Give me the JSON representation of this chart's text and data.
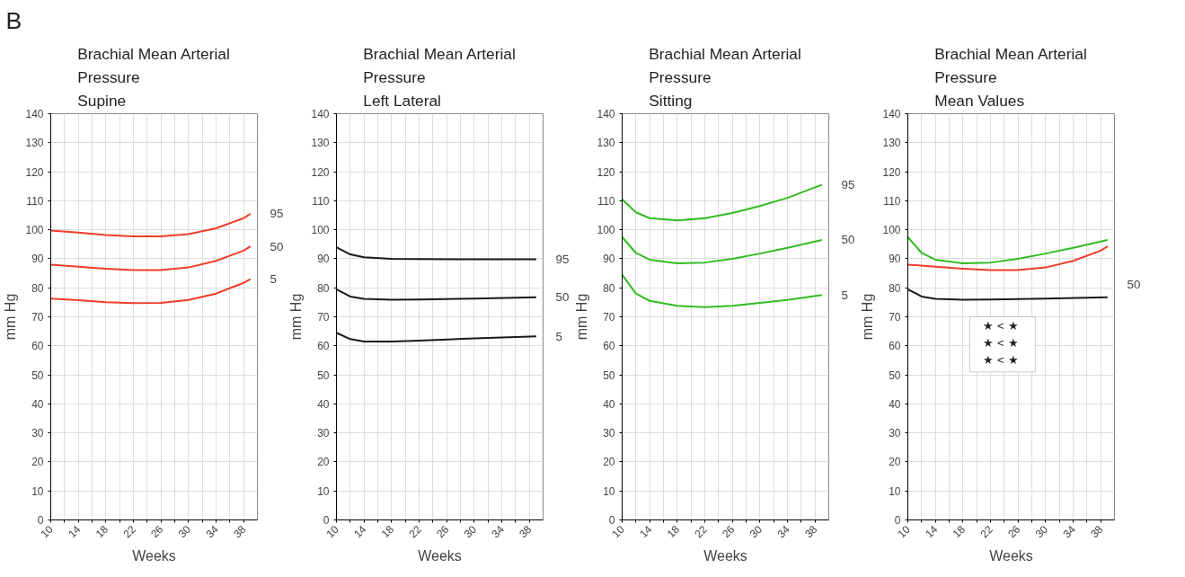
{
  "chart_data": [
    {
      "type": "line",
      "title": "Brachial Mean Arterial\nPressure\nSupine",
      "xlabel": "Weeks",
      "ylabel": "mm Hg",
      "annotations": [
        "B"
      ],
      "x": [
        10,
        14,
        18,
        22,
        26,
        30,
        34,
        38,
        39
      ],
      "series": [
        {
          "name": "95",
          "color": "#f03c28",
          "values": [
            99.7,
            99,
            98.2,
            97.7,
            97.7,
            98.5,
            100.5,
            104,
            105.5
          ]
        },
        {
          "name": "50",
          "color": "#f03c28",
          "values": [
            88,
            87.3,
            86.6,
            86.1,
            86.1,
            87,
            89.3,
            92.8,
            94.3
          ]
        },
        {
          "name": "5",
          "color": "#f03c28",
          "values": [
            76.3,
            75.7,
            75,
            74.7,
            74.8,
            75.8,
            78,
            81.7,
            83
          ]
        }
      ],
      "xlim": [
        10,
        40
      ],
      "ylim": [
        0,
        140
      ],
      "xticks": [
        10,
        {
          "value": 12,
          "label": null
        },
        14,
        {
          "value": 16,
          "label": null
        },
        18,
        {
          "value": 20,
          "label": null
        },
        22,
        {
          "value": 24,
          "label": null
        },
        26,
        {
          "value": 28,
          "label": null
        },
        30,
        {
          "value": 32,
          "label": null
        },
        34,
        {
          "value": 36,
          "label": null
        },
        38
      ],
      "yticks": [
        0,
        10,
        20,
        30,
        40,
        50,
        60,
        70,
        80,
        90,
        100,
        110,
        120,
        130,
        140
      ],
      "grid": true,
      "marker": "none",
      "line_style": "solid"
    },
    {
      "type": "line",
      "title": "Brachial Mean Arterial\nPressure\nLeft Lateral",
      "xlabel": "Weeks",
      "ylabel": "mm Hg",
      "x": [
        10,
        12,
        14,
        18,
        22,
        30,
        39
      ],
      "series": [
        {
          "name": "95",
          "color": "#1a1a1a",
          "values": [
            94,
            91.5,
            90.5,
            90,
            89.9,
            89.8,
            89.8
          ]
        },
        {
          "name": "50",
          "color": "#1a1a1a",
          "values": [
            79.5,
            77,
            76.2,
            75.9,
            76,
            76.3,
            76.7
          ]
        },
        {
          "name": "5",
          "color": "#1a1a1a",
          "values": [
            64.5,
            62.3,
            61.5,
            61.5,
            61.8,
            62.6,
            63.3
          ]
        }
      ],
      "xlim": [
        10,
        40
      ],
      "ylim": [
        0,
        140
      ],
      "xticks": [
        10,
        {
          "value": 12,
          "label": null
        },
        14,
        {
          "value": 16,
          "label": null
        },
        18,
        {
          "value": 20,
          "label": null
        },
        22,
        {
          "value": 24,
          "label": null
        },
        26,
        {
          "value": 28,
          "label": null
        },
        30,
        {
          "value": 32,
          "label": null
        },
        34,
        {
          "value": 36,
          "label": null
        },
        38
      ],
      "yticks": [
        0,
        10,
        20,
        30,
        40,
        50,
        60,
        70,
        80,
        90,
        100,
        110,
        120,
        130,
        140
      ],
      "grid": true,
      "marker": "none",
      "line_style": "solid"
    },
    {
      "type": "line",
      "title": "Brachial Mean Arterial\nPressure\nSitting",
      "xlabel": "Weeks",
      "ylabel": "mm Hg",
      "x": [
        10,
        12,
        14,
        18,
        22,
        26,
        30,
        34,
        39
      ],
      "series": [
        {
          "name": "95",
          "color": "#33bb22",
          "values": [
            110.5,
            106,
            104,
            103.2,
            104,
            105.8,
            108.2,
            111,
            115.5
          ]
        },
        {
          "name": "50",
          "color": "#33bb22",
          "values": [
            97.5,
            92,
            89.7,
            88.4,
            88.7,
            90,
            91.8,
            93.8,
            96.5
          ]
        },
        {
          "name": "5",
          "color": "#33bb22",
          "values": [
            84.5,
            78,
            75.5,
            73.8,
            73.3,
            73.8,
            74.8,
            75.8,
            77.5
          ]
        }
      ],
      "xlim": [
        10,
        40
      ],
      "ylim": [
        0,
        140
      ],
      "xticks": [
        10,
        {
          "value": 12,
          "label": null
        },
        14,
        {
          "value": 16,
          "label": null
        },
        18,
        {
          "value": 20,
          "label": null
        },
        22,
        {
          "value": 24,
          "label": null
        },
        26,
        {
          "value": 28,
          "label": null
        },
        30,
        {
          "value": 32,
          "label": null
        },
        34,
        {
          "value": 36,
          "label": null
        },
        38
      ],
      "yticks": [
        0,
        10,
        20,
        30,
        40,
        50,
        60,
        70,
        80,
        90,
        100,
        110,
        120,
        130,
        140
      ],
      "grid": true,
      "marker": "none",
      "line_style": "solid"
    },
    {
      "type": "line",
      "title": "Brachial Mean Arterial\nPressure\nMean Values",
      "xlabel": "Weeks",
      "ylabel": "mm Hg",
      "annotations": [
        "50",
        "★ < ★",
        "★ < ★",
        "★ < ★"
      ],
      "series": [
        {
          "color": "#33bb22",
          "x": [
            10,
            12,
            14,
            18,
            22,
            26,
            30,
            34,
            39
          ],
          "values": [
            97.5,
            92,
            89.7,
            88.4,
            88.7,
            90,
            91.8,
            93.8,
            96.5
          ]
        },
        {
          "color": "#f03c28",
          "x": [
            10,
            14,
            18,
            22,
            26,
            30,
            34,
            38,
            39
          ],
          "values": [
            88,
            87.3,
            86.6,
            86.1,
            86.1,
            87,
            89.3,
            92.8,
            94.3
          ]
        },
        {
          "color": "#1a1a1a",
          "x": [
            10,
            12,
            14,
            18,
            22,
            30,
            39
          ],
          "values": [
            79.5,
            77,
            76.2,
            75.9,
            76,
            76.3,
            76.7
          ]
        }
      ],
      "xlim": [
        10,
        40
      ],
      "ylim": [
        0,
        140
      ],
      "xticks": [
        10,
        {
          "value": 12,
          "label": null
        },
        14,
        {
          "value": 16,
          "label": null
        },
        18,
        {
          "value": 20,
          "label": null
        },
        22,
        {
          "value": 24,
          "label": null
        },
        26,
        {
          "value": 28,
          "label": null
        },
        30,
        {
          "value": 32,
          "label": null
        },
        34,
        {
          "value": 36,
          "label": null
        },
        38
      ],
      "yticks": [
        0,
        10,
        20,
        30,
        40,
        50,
        60,
        70,
        80,
        90,
        100,
        110,
        120,
        130,
        140
      ],
      "grid": true,
      "marker": "none",
      "line_style": "solid"
    }
  ]
}
